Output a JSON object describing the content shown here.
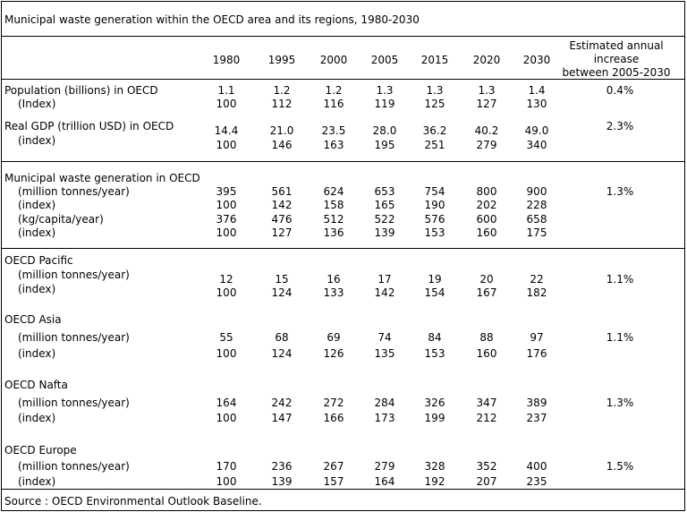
{
  "title": "Municipal waste generation within the OECD area and its regions, 1980-2030",
  "years": [
    "1980",
    "1995",
    "2000",
    "2005",
    "2015",
    "2020",
    "2030"
  ],
  "increase_header": [
    "Estimated annual",
    "increase",
    "between 2005-2030"
  ],
  "rows": [
    {
      "label": "Population (billions) in OECD",
      "values": [
        "1.1",
        "1.2",
        "1.2",
        "1.3",
        "1.3",
        "1.3",
        "1.4"
      ],
      "increase": "0.4%"
    },
    {
      "label": "(Index)",
      "values": [
        "100",
        "112",
        "116",
        "119",
        "125",
        "127",
        "130"
      ],
      "increase": ""
    },
    {
      "label": "Real GDP (trillion USD) in OECD",
      "values": [],
      "increase": "2.3%"
    },
    {
      "label": "",
      "values": [
        "14.4",
        "21.0",
        "23.5",
        "28.0",
        "36.2",
        "40.2",
        "49.0"
      ],
      "increase": ""
    },
    {
      "label": "(index)",
      "values": [
        "100",
        "146",
        "163",
        "195",
        "251",
        "279",
        "340"
      ],
      "increase": ""
    },
    {
      "label": "Municipal waste generation in OECD",
      "values": [],
      "increase": ""
    },
    {
      "label": "(million tonnes/year)",
      "values": [
        "395",
        "561",
        "624",
        "653",
        "754",
        "800",
        "900"
      ],
      "increase": "1.3%"
    },
    {
      "label": "(index)",
      "values": [
        "100",
        "142",
        "158",
        "165",
        "190",
        "202",
        "228"
      ],
      "increase": ""
    },
    {
      "label": "(kg/capita/year)",
      "values": [
        "376",
        "476",
        "512",
        "522",
        "576",
        "600",
        "658"
      ],
      "increase": ""
    },
    {
      "label": "(index)",
      "values": [
        "100",
        "127",
        "136",
        "139",
        "153",
        "160",
        "175"
      ],
      "increase": ""
    },
    {
      "label": "OECD Pacific",
      "values": [],
      "increase": ""
    },
    {
      "label": "(million tonnes/year)",
      "values": [
        "12",
        "15",
        "16",
        "17",
        "19",
        "20",
        "22"
      ],
      "increase": "1.1%"
    },
    {
      "label": "(index)",
      "values": [
        "100",
        "124",
        "133",
        "142",
        "154",
        "167",
        "182"
      ],
      "increase": ""
    },
    {
      "label": "OECD Asia",
      "values": [],
      "increase": ""
    },
    {
      "label": "(million tonnes/year)",
      "values": [
        "55",
        "68",
        "69",
        "74",
        "84",
        "88",
        "97"
      ],
      "increase": "1.1%"
    },
    {
      "label": "(index)",
      "values": [
        "100",
        "124",
        "126",
        "135",
        "153",
        "160",
        "176"
      ],
      "increase": ""
    },
    {
      "label": "OECD Nafta",
      "values": [],
      "increase": ""
    },
    {
      "label": "(million tonnes/year)",
      "values": [
        "164",
        "242",
        "272",
        "284",
        "326",
        "347",
        "389"
      ],
      "increase": "1.3%"
    },
    {
      "label": "(index)",
      "values": [
        "100",
        "147",
        "166",
        "173",
        "199",
        "212",
        "237"
      ],
      "increase": ""
    },
    {
      "label": "OECD Europe",
      "values": [],
      "increase": ""
    },
    {
      "label": "(million tonnes/year)",
      "values": [
        "170",
        "236",
        "267",
        "279",
        "328",
        "352",
        "400"
      ],
      "increase": "1.5%"
    },
    {
      "label": "(index)",
      "values": [
        "100",
        "139",
        "157",
        "164",
        "192",
        "207",
        "235"
      ],
      "increase": ""
    }
  ],
  "source": "Source : OECD Environmental Outlook Baseline."
}
